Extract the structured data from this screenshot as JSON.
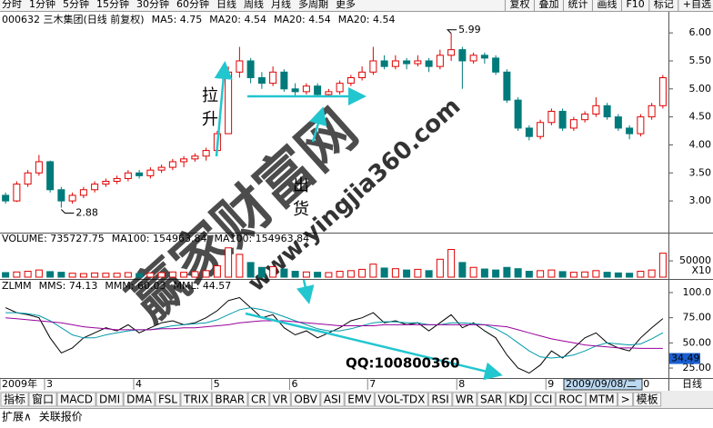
{
  "toolbar": {
    "periods": [
      "分时",
      "1分钟",
      "5分钟",
      "15分钟",
      "30分钟",
      "60分钟",
      "日线",
      "周线",
      "月线",
      "多周期",
      "更多"
    ],
    "selected": 6,
    "buttons": [
      "复权",
      "叠加",
      "统计",
      "画线",
      "F10",
      "标记",
      "+自选"
    ]
  },
  "chart_data": [
    {
      "type": "candlestick",
      "title": "000632 三木集团(日线 前复权)",
      "indicators": [
        {
          "label": "MA5: 4.75",
          "color": "#000000"
        },
        {
          "label": "MA20: 4.54",
          "color": "#0099aa"
        },
        {
          "label": "MA20: 4.54",
          "color": "#990099"
        },
        {
          "label": "MA20: 4.54",
          "color": "#888888"
        }
      ],
      "annotations": [
        "拉升",
        "出货"
      ],
      "max_label": 5.99,
      "min_label": 2.88,
      "up_color": "#e00000",
      "down_color": "#007a7a",
      "ylim": [
        2.45,
        6.1
      ],
      "yticks": [
        {
          "value": 6,
          "label": "6.00"
        },
        {
          "value": 5.5,
          "label": "5.50"
        },
        {
          "value": 5,
          "label": "5.00"
        },
        {
          "value": 4.5,
          "label": "4.50"
        },
        {
          "value": 4,
          "label": "4.00"
        },
        {
          "value": 3.5,
          "label": "3.50"
        },
        {
          "value": 3,
          "label": "3.00"
        }
      ],
      "categories": [
        "2009年",
        null,
        null,
        null,
        "3",
        null,
        null,
        null,
        null,
        null,
        null,
        null,
        "4",
        null,
        null,
        null,
        null,
        null,
        null,
        "5",
        null,
        null,
        null,
        null,
        null,
        null,
        "6",
        null,
        null,
        null,
        null,
        null,
        null,
        "7",
        null,
        null,
        null,
        null,
        null,
        null,
        null,
        "8",
        null,
        null,
        null,
        null,
        null,
        null,
        null,
        "9",
        null,
        null,
        null,
        null,
        null,
        null,
        null,
        "10",
        null,
        null
      ],
      "candles": [
        [
          3.1,
          3.15,
          2.95,
          3.0
        ],
        [
          3.0,
          3.35,
          2.98,
          3.3
        ],
        [
          3.3,
          3.55,
          3.25,
          3.5
        ],
        [
          3.5,
          3.82,
          3.45,
          3.7
        ],
        [
          3.7,
          3.72,
          3.15,
          3.2
        ],
        [
          3.2,
          3.25,
          2.88,
          3.0
        ],
        [
          3.0,
          3.15,
          2.95,
          3.1
        ],
        [
          3.1,
          3.25,
          3.05,
          3.2
        ],
        [
          3.2,
          3.35,
          3.15,
          3.3
        ],
        [
          3.3,
          3.4,
          3.25,
          3.35
        ],
        [
          3.35,
          3.45,
          3.3,
          3.4
        ],
        [
          3.4,
          3.55,
          3.35,
          3.5
        ],
        [
          3.5,
          3.55,
          3.4,
          3.45
        ],
        [
          3.45,
          3.6,
          3.4,
          3.55
        ],
        [
          3.55,
          3.65,
          3.5,
          3.6
        ],
        [
          3.6,
          3.75,
          3.55,
          3.7
        ],
        [
          3.7,
          3.8,
          3.6,
          3.75
        ],
        [
          3.75,
          3.85,
          3.7,
          3.8
        ],
        [
          3.8,
          3.95,
          3.72,
          3.9
        ],
        [
          3.9,
          4.25,
          3.85,
          4.2
        ],
        [
          4.2,
          5.4,
          4.2,
          5.3
        ],
        [
          5.3,
          5.75,
          5.2,
          5.5
        ],
        [
          5.5,
          5.55,
          5.1,
          5.2
        ],
        [
          5.2,
          5.3,
          5.0,
          5.1
        ],
        [
          5.1,
          5.4,
          5.05,
          5.3
        ],
        [
          5.3,
          5.35,
          4.95,
          5.0
        ],
        [
          5.0,
          5.1,
          4.85,
          4.95
        ],
        [
          4.95,
          5.1,
          4.9,
          5.05
        ],
        [
          5.05,
          5.1,
          4.85,
          4.9
        ],
        [
          4.9,
          5.0,
          4.85,
          4.95
        ],
        [
          4.95,
          5.15,
          4.9,
          5.1
        ],
        [
          5.1,
          5.25,
          5.05,
          5.2
        ],
        [
          5.2,
          5.4,
          5.15,
          5.3
        ],
        [
          5.3,
          5.75,
          5.25,
          5.5
        ],
        [
          5.5,
          5.6,
          5.35,
          5.4
        ],
        [
          5.4,
          5.6,
          5.35,
          5.5
        ],
        [
          5.5,
          5.55,
          5.35,
          5.45
        ],
        [
          5.45,
          5.6,
          5.4,
          5.5
        ],
        [
          5.5,
          5.55,
          5.3,
          5.4
        ],
        [
          5.4,
          5.7,
          5.35,
          5.6
        ],
        [
          5.6,
          5.99,
          5.5,
          5.7
        ],
        [
          5.7,
          5.75,
          5.0,
          5.5
        ],
        [
          5.5,
          5.65,
          5.45,
          5.6
        ],
        [
          5.6,
          5.65,
          5.45,
          5.55
        ],
        [
          5.55,
          5.6,
          5.25,
          5.3
        ],
        [
          5.3,
          5.35,
          4.75,
          4.8
        ],
        [
          4.8,
          4.85,
          4.25,
          4.3
        ],
        [
          4.3,
          4.35,
          4.08,
          4.15
        ],
        [
          4.15,
          4.45,
          4.1,
          4.4
        ],
        [
          4.4,
          4.65,
          4.35,
          4.6
        ],
        [
          4.6,
          4.65,
          4.25,
          4.3
        ],
        [
          4.3,
          4.5,
          4.25,
          4.45
        ],
        [
          4.45,
          4.6,
          4.4,
          4.55
        ],
        [
          4.55,
          4.85,
          4.5,
          4.7
        ],
        [
          4.7,
          4.75,
          4.45,
          4.5
        ],
        [
          4.5,
          4.55,
          4.25,
          4.3
        ],
        [
          4.3,
          4.35,
          4.1,
          4.2
        ],
        [
          4.2,
          4.55,
          4.15,
          4.5
        ],
        [
          4.5,
          4.75,
          4.45,
          4.7
        ],
        [
          4.7,
          5.25,
          4.65,
          5.2
        ]
      ]
    },
    {
      "type": "bar",
      "title": "VOLUME: 735727.75",
      "indicators": [
        {
          "label": "MA100: 154963.84",
          "color": "#0099aa"
        },
        {
          "label": "MA100: 154963.84",
          "color": "#990099"
        }
      ],
      "unit_label": "X10",
      "ylim": [
        0,
        120000
      ],
      "yticks": [
        50000
      ],
      "values": [
        14000,
        16000,
        18000,
        22000,
        17000,
        15000,
        12000,
        11000,
        13000,
        12000,
        12000,
        14000,
        11000,
        13000,
        14000,
        16000,
        15000,
        17000,
        20000,
        35000,
        90000,
        70000,
        45000,
        30000,
        32000,
        25000,
        18000,
        16000,
        15000,
        14000,
        18000,
        20000,
        24000,
        40000,
        28000,
        26000,
        22000,
        24000,
        20000,
        55000,
        85000,
        45000,
        30000,
        25000,
        22000,
        30000,
        26000,
        18000,
        20000,
        22000,
        17000,
        15000,
        16000,
        20000,
        15000,
        13000,
        12000,
        18000,
        22000,
        73572.78
      ]
    },
    {
      "type": "line",
      "title": "ZLMM",
      "indicators": [
        {
          "label": "MMS: 74.13",
          "color": "#000000"
        },
        {
          "label": "MMM: 60.03",
          "color": "#0099aa"
        },
        {
          "label": "MML: 44.57",
          "color": "#990099"
        }
      ],
      "marker_value": 34.49,
      "ylim": [
        16,
        109
      ],
      "yticks": [
        {
          "value": 100,
          "label": "100.0"
        },
        {
          "value": 75,
          "label": "75.00"
        },
        {
          "value": 50,
          "label": "50.00"
        },
        {
          "value": 25,
          "label": "25.00"
        }
      ],
      "series": [
        {
          "color": "#000000",
          "values": [
            85,
            80,
            78,
            75,
            55,
            40,
            45,
            55,
            60,
            65,
            62,
            68,
            60,
            65,
            70,
            72,
            68,
            70,
            75,
            82,
            92,
            95,
            85,
            75,
            78,
            65,
            58,
            62,
            55,
            60,
            65,
            72,
            75,
            80,
            70,
            72,
            68,
            70,
            62,
            70,
            78,
            65,
            70,
            62,
            55,
            38,
            25,
            20,
            28,
            42,
            35,
            45,
            55,
            60,
            50,
            45,
            42,
            55,
            65,
            74.13
          ]
        },
        {
          "color": "#0099aa",
          "values": [
            80,
            80,
            79,
            77,
            72,
            65,
            58,
            55,
            55,
            58,
            60,
            62,
            63,
            63,
            65,
            67,
            68,
            69,
            70,
            73,
            78,
            83,
            85,
            83,
            80,
            76,
            72,
            68,
            64,
            62,
            62,
            64,
            67,
            70,
            71,
            71,
            70,
            70,
            68,
            68,
            70,
            70,
            69,
            68,
            64,
            58,
            50,
            42,
            36,
            35,
            36,
            38,
            42,
            47,
            50,
            49,
            48,
            49,
            54,
            60.03
          ]
        },
        {
          "color": "#990099",
          "values": [
            75,
            74,
            73,
            72,
            71,
            70,
            68,
            66,
            65,
            64,
            63,
            63,
            63,
            63,
            64,
            64,
            65,
            65,
            66,
            67,
            68,
            70,
            71,
            72,
            72,
            72,
            71,
            70,
            69,
            68,
            67,
            67,
            67,
            67,
            68,
            68,
            68,
            68,
            68,
            68,
            68,
            68,
            68,
            68,
            67,
            66,
            63,
            60,
            57,
            54,
            52,
            50,
            48,
            47,
            46,
            45,
            45,
            44.5,
            44.5,
            44.57
          ]
        }
      ]
    }
  ],
  "date_axis": {
    "selected_date": "2009/09/08/二",
    "period_label": "日线"
  },
  "watermark": [
    "赢家财富网",
    "www.yingjia360.com",
    "QQ:100800360"
  ],
  "tabs": [
    "指标",
    "窗口",
    "MACD",
    "DMI",
    "DMA",
    "FSL",
    "TRIX",
    "BRAR",
    "CR",
    "VR",
    "OBV",
    "ASI",
    "EMV",
    "VOL-TDX",
    "RSI",
    "WR",
    "SAR",
    "KDJ",
    "CCI",
    "ROC",
    "MTM",
    ">",
    "模板"
  ],
  "footer": [
    "扩展∧",
    "关联报价"
  ]
}
